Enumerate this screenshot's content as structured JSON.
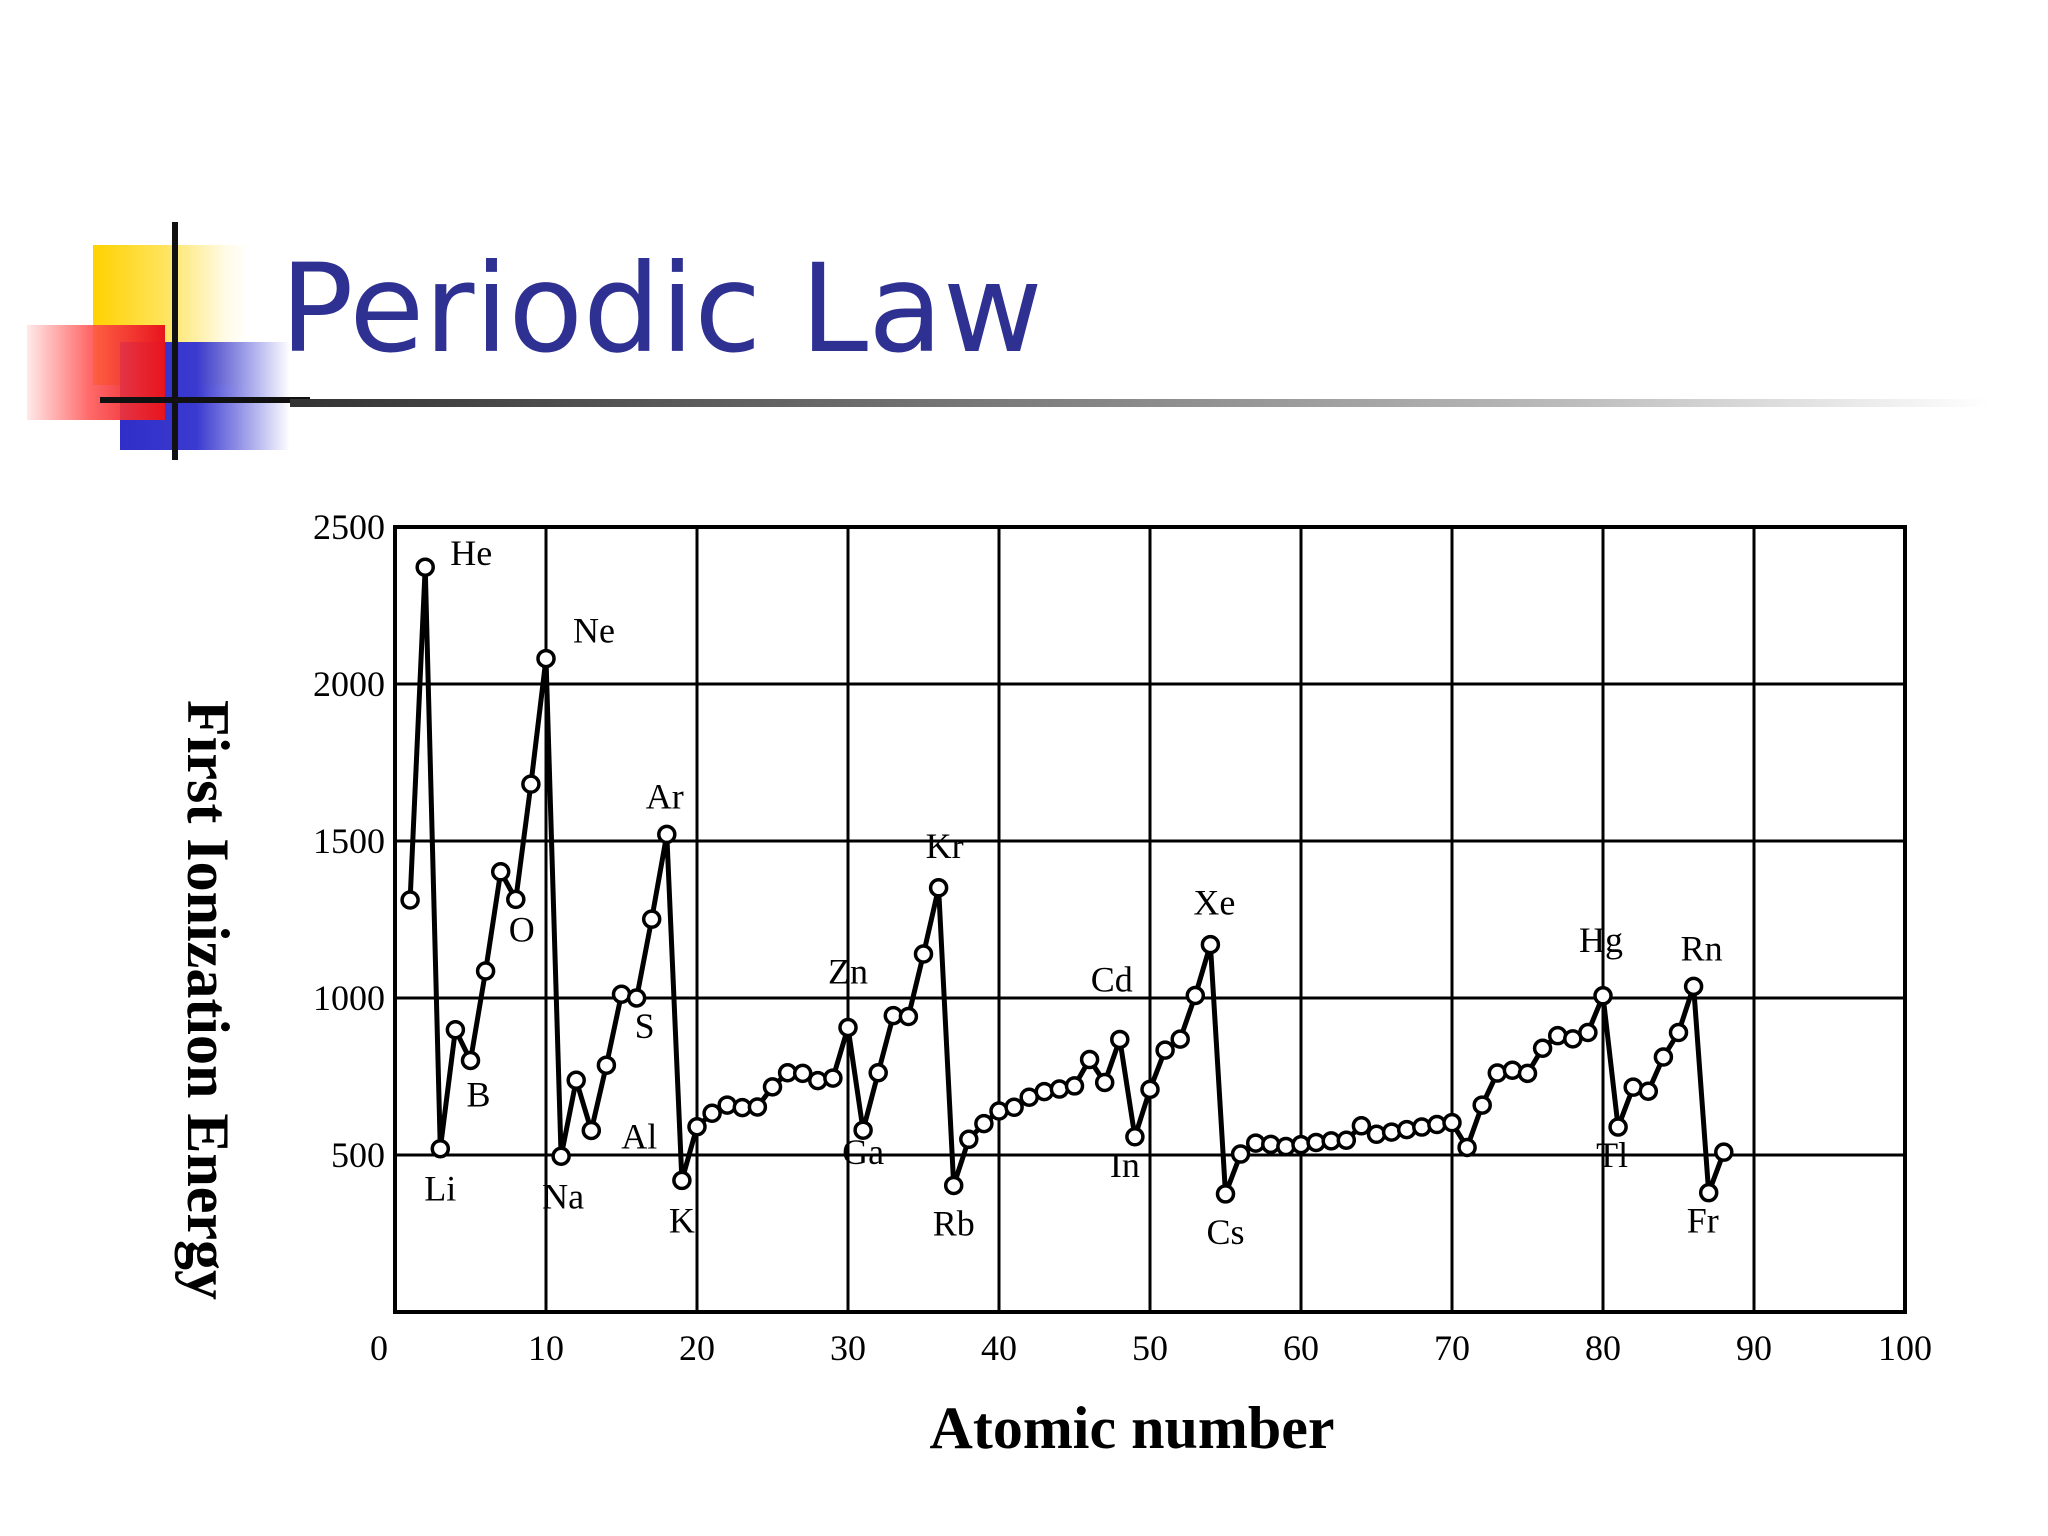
{
  "slide": {
    "title": "Periodic Law",
    "title_color": "#2e3192",
    "accent_colors": {
      "yellow": "#ffd200",
      "red": "#e8141c",
      "blue": "#2f2fc8"
    }
  },
  "chart_data": {
    "type": "line",
    "title": "",
    "xlabel": "Atomic number",
    "ylabel": "First Ionization Energy",
    "xlim": [
      0,
      100
    ],
    "ylim": [
      0,
      2500
    ],
    "x_ticks": [
      0,
      10,
      20,
      30,
      40,
      50,
      60,
      70,
      80,
      90,
      100
    ],
    "y_ticks": [
      500,
      1000,
      1500,
      2000,
      2500
    ],
    "grid": true,
    "legend": "none",
    "marker": "open-circle",
    "series": [
      {
        "x": [
          1,
          2,
          3,
          4,
          5,
          6,
          7,
          8,
          9,
          10,
          11,
          12,
          13,
          14,
          15,
          16,
          17,
          18,
          19,
          20,
          21,
          22,
          23,
          24,
          25,
          26,
          27,
          28,
          29,
          30,
          31,
          32,
          33,
          34,
          35,
          36,
          37,
          38,
          39,
          40,
          41,
          42,
          43,
          44,
          45,
          46,
          47,
          48,
          49,
          50,
          51,
          52,
          53,
          54,
          55,
          56,
          57,
          58,
          59,
          60,
          61,
          62,
          63,
          64,
          65,
          66,
          67,
          68,
          69,
          70,
          71,
          72,
          73,
          74,
          75,
          76,
          77,
          78,
          79,
          80,
          81,
          82,
          83,
          84,
          85,
          86,
          87,
          88
        ],
        "y": [
          1312,
          2372,
          520,
          899,
          801,
          1086,
          1402,
          1314,
          1681,
          2081,
          496,
          738,
          578,
          786,
          1012,
          1000,
          1251,
          1521,
          419,
          590,
          633,
          659,
          651,
          653,
          717,
          762,
          760,
          737,
          745,
          906,
          579,
          762,
          944,
          941,
          1140,
          1351,
          403,
          550,
          600,
          640,
          652,
          684,
          702,
          710,
          720,
          804,
          731,
          868,
          558,
          709,
          834,
          869,
          1008,
          1170,
          376,
          503,
          538,
          534,
          527,
          533,
          540,
          545,
          547,
          593,
          566,
          573,
          581,
          589,
          597,
          603,
          524,
          659,
          761,
          770,
          760,
          840,
          880,
          870,
          890,
          1007,
          589,
          716,
          703,
          812,
          890,
          1037,
          380,
          509
        ]
      }
    ],
    "annotations": [
      {
        "label": "He",
        "x": 2,
        "y": 2372
      },
      {
        "label": "Li",
        "x": 3,
        "y": 520
      },
      {
        "label": "B",
        "x": 5,
        "y": 801
      },
      {
        "label": "O",
        "x": 8,
        "y": 1314
      },
      {
        "label": "Ne",
        "x": 10,
        "y": 2081
      },
      {
        "label": "Na",
        "x": 11,
        "y": 496
      },
      {
        "label": "Al",
        "x": 13,
        "y": 578
      },
      {
        "label": "S",
        "x": 16,
        "y": 1000
      },
      {
        "label": "Ar",
        "x": 18,
        "y": 1521
      },
      {
        "label": "K",
        "x": 19,
        "y": 419
      },
      {
        "label": "Zn",
        "x": 30,
        "y": 906
      },
      {
        "label": "Ga",
        "x": 31,
        "y": 579
      },
      {
        "label": "Kr",
        "x": 36,
        "y": 1351
      },
      {
        "label": "Rb",
        "x": 37,
        "y": 403
      },
      {
        "label": "Cd",
        "x": 48,
        "y": 868
      },
      {
        "label": "In",
        "x": 49,
        "y": 558
      },
      {
        "label": "Xe",
        "x": 54,
        "y": 1170
      },
      {
        "label": "Cs",
        "x": 55,
        "y": 376
      },
      {
        "label": "Hg",
        "x": 80,
        "y": 1007
      },
      {
        "label": "Tl",
        "x": 81,
        "y": 589
      },
      {
        "label": "Rn",
        "x": 86,
        "y": 1037
      },
      {
        "label": "Fr",
        "x": 87,
        "y": 380
      }
    ]
  }
}
